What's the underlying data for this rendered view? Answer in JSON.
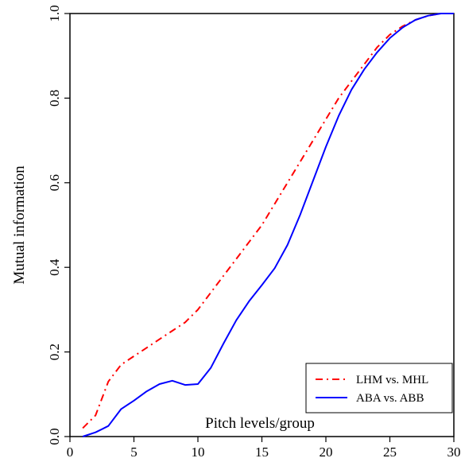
{
  "chart_data": {
    "type": "line",
    "xlabel": "Pitch levels/group",
    "ylabel": "Mutual information",
    "xlim": [
      0,
      30
    ],
    "ylim": [
      0,
      1
    ],
    "xticks": [
      "0",
      "5",
      "10",
      "15",
      "20",
      "25",
      "30"
    ],
    "yticks": [
      "0.0",
      "0.2",
      "0.4",
      "0.6",
      "0.8",
      "1.0"
    ],
    "grid": false,
    "legend_position": "bottom-right",
    "series": [
      {
        "name": "LHM vs. MHL",
        "color": "#ff0000",
        "dash": "dash-dot",
        "x": [
          1,
          2,
          3,
          4,
          5,
          6,
          7,
          8,
          9,
          10,
          11,
          12,
          13,
          14,
          15,
          16,
          17,
          18,
          19,
          20,
          21,
          22,
          23,
          24,
          25,
          26,
          27,
          28,
          29
        ],
        "y": [
          0.02,
          0.05,
          0.13,
          0.17,
          0.19,
          0.21,
          0.23,
          0.25,
          0.27,
          0.3,
          0.34,
          0.38,
          0.42,
          0.46,
          0.5,
          0.55,
          0.6,
          0.65,
          0.7,
          0.75,
          0.8,
          0.84,
          0.88,
          0.92,
          0.95,
          0.97,
          0.985,
          0.995,
          1.0
        ]
      },
      {
        "name": "ABA vs. ABB",
        "color": "#0000ff",
        "dash": "solid",
        "x": [
          1,
          2,
          3,
          4,
          5,
          6,
          7,
          8,
          9,
          10,
          11,
          12,
          13,
          14,
          15,
          16,
          17,
          18,
          19,
          20,
          21,
          22,
          23,
          24,
          25,
          26,
          27,
          28,
          29,
          30
        ],
        "y": [
          0.0,
          0.01,
          0.025,
          0.065,
          0.085,
          0.107,
          0.124,
          0.132,
          0.122,
          0.124,
          0.162,
          0.22,
          0.275,
          0.32,
          0.358,
          0.398,
          0.453,
          0.525,
          0.605,
          0.685,
          0.758,
          0.82,
          0.868,
          0.908,
          0.942,
          0.967,
          0.985,
          0.995,
          1.0,
          1.0
        ]
      }
    ]
  }
}
